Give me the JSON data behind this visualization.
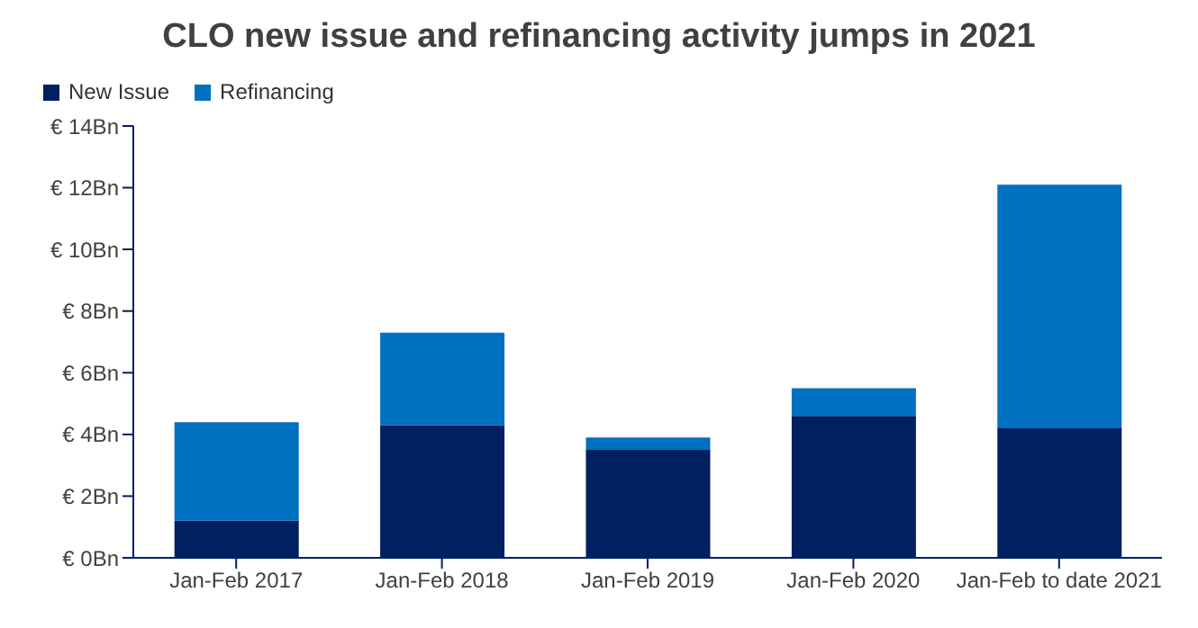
{
  "chart_data": {
    "type": "bar",
    "title": "CLO new issue and refinancing activity jumps in 2021",
    "categories": [
      "Jan-Feb 2017",
      "Jan-Feb 2018",
      "Jan-Feb 2019",
      "Jan-Feb 2020",
      "Jan-Feb to date 2021"
    ],
    "series": [
      {
        "name": "New Issue",
        "color": "#002060",
        "values": [
          1.2,
          4.3,
          3.5,
          4.6,
          4.2
        ]
      },
      {
        "name": "Refinancing",
        "color": "#0070c0",
        "values": [
          3.2,
          3.0,
          0.4,
          0.9,
          7.9
        ]
      }
    ],
    "stacked": true,
    "ylim": [
      0,
      14
    ],
    "yticks": [
      {
        "value": 0,
        "label": "€ 0Bn"
      },
      {
        "value": 2,
        "label": "€ 2Bn"
      },
      {
        "value": 4,
        "label": "€ 4Bn"
      },
      {
        "value": 6,
        "label": "€ 6Bn"
      },
      {
        "value": 8,
        "label": "€ 8Bn"
      },
      {
        "value": 10,
        "label": "€ 10Bn"
      },
      {
        "value": 12,
        "label": "€ 12Bn"
      },
      {
        "value": 14,
        "label": "€ 14Bn"
      }
    ],
    "grid": false,
    "legend": "top left"
  }
}
